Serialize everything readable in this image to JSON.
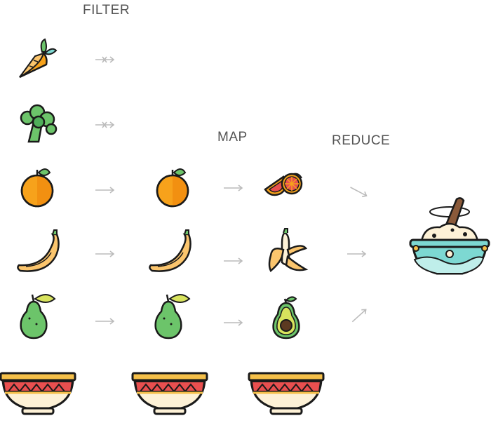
{
  "labels": {
    "filter": "FILTER",
    "map": "MAP",
    "reduce": "REDUCE"
  },
  "icons": {
    "column1": [
      "carrot-icon",
      "broccoli-icon",
      "orange-icon",
      "banana-icon",
      "pear-icon"
    ],
    "column2": [
      "orange-icon",
      "banana-icon",
      "pear-icon"
    ],
    "column3": [
      "orange-slices-icon",
      "peeled-banana-icon",
      "avocado-icon"
    ],
    "result": "salad-bowl-icon",
    "bowls": [
      "bowl-icon",
      "bowl-icon",
      "bowl-icon"
    ]
  },
  "colors": {
    "outline": "#1a1a1a",
    "orange": "#f7a21b",
    "banana": "#fbc56d",
    "pear": "#6cc46a",
    "leaf": "#d8e35d",
    "bowl_red": "#e94f4f",
    "bowl_yellow": "#f5c04a",
    "bowl_cream": "#fdf1d6",
    "teal": "#7dd8d2",
    "arrow": "#bbbbbb"
  }
}
